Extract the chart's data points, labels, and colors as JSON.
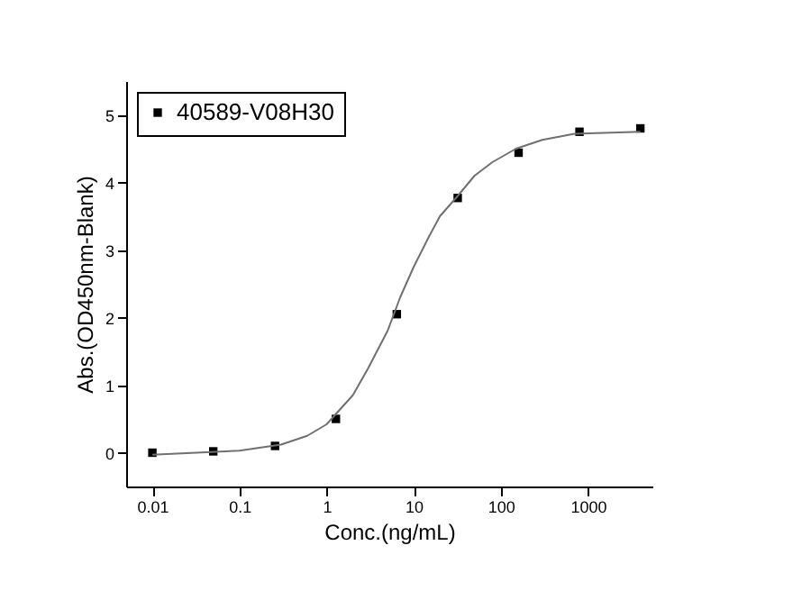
{
  "chart_data": {
    "type": "scatter",
    "xlabel": "Conc.(ng/mL)",
    "ylabel": "Abs.(OD450nm-Blank)",
    "log": "x",
    "marker": "square",
    "legend": "top",
    "grid": false,
    "xlim": [
      0.005,
      5500
    ],
    "xticks": [
      0.01,
      0.1,
      1,
      10,
      100,
      1000
    ],
    "ylim": [
      -0.5,
      5.5
    ],
    "yticks": [
      0,
      1,
      2,
      3,
      4,
      5
    ],
    "series": [
      {
        "name": "40589-V08H30",
        "color": "#000000",
        "x": [
          0.01,
          0.05,
          0.256,
          1.28,
          6.4,
          32,
          160,
          800,
          4000
        ],
        "values": [
          0,
          0.02,
          0.1,
          0.5,
          2.05,
          3.77,
          4.44,
          4.75,
          4.8
        ]
      },
      {
        "type": "line",
        "marker": "none",
        "color": "#707070",
        "x": [
          0.01,
          0.1,
          0.3,
          0.6,
          1,
          2,
          3,
          5,
          7,
          10,
          15,
          20,
          32,
          50,
          80,
          150,
          300,
          700,
          4000
        ],
        "values": [
          -0.03,
          0.03,
          0.12,
          0.25,
          0.42,
          0.85,
          1.25,
          1.8,
          2.3,
          2.75,
          3.2,
          3.5,
          3.8,
          4.1,
          4.3,
          4.5,
          4.63,
          4.72,
          4.75
        ]
      }
    ]
  }
}
